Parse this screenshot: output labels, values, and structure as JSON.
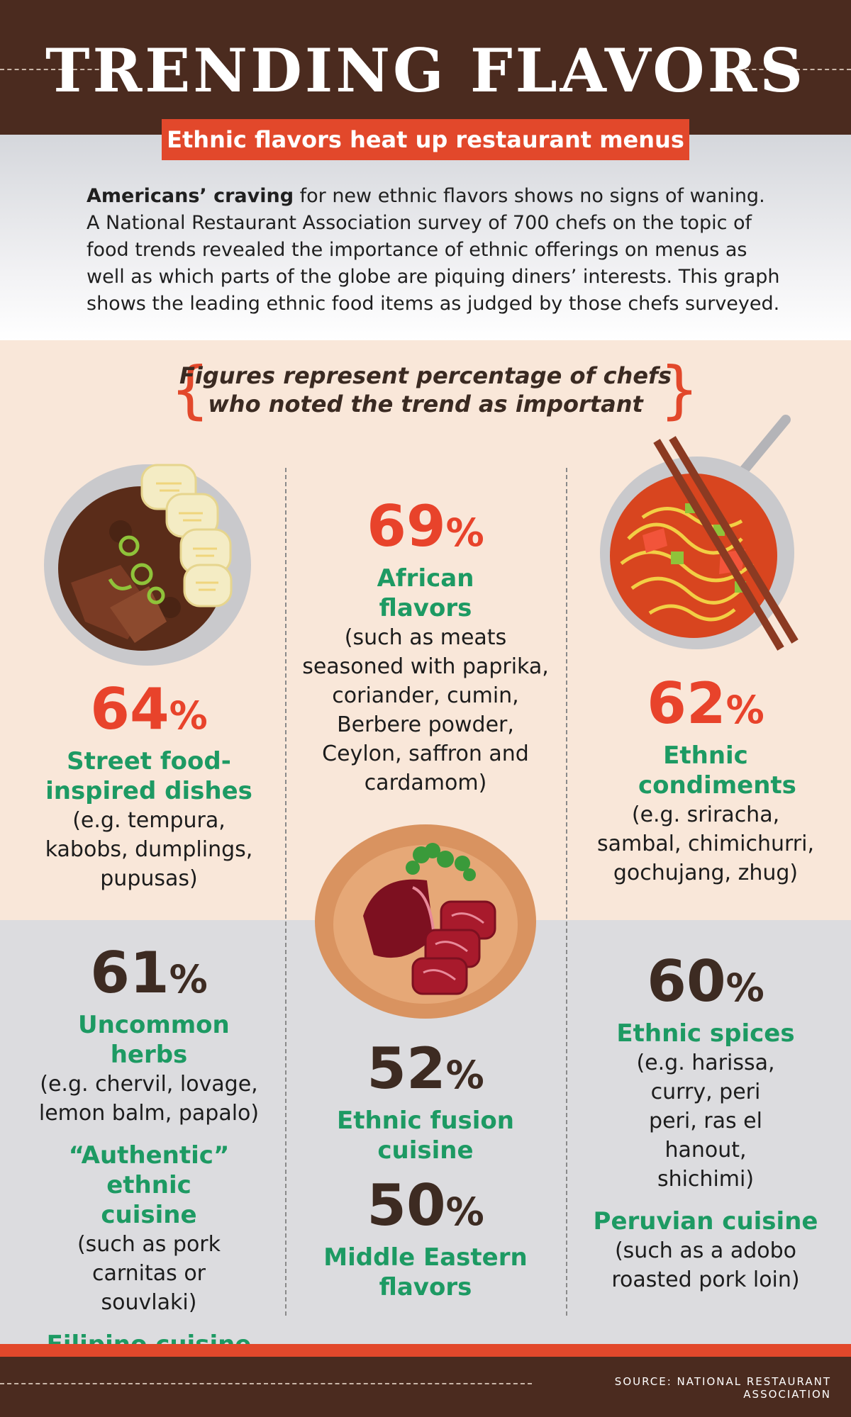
{
  "header": {
    "title": "TRENDING FLAVORS",
    "subtitle": "Ethnic flavors heat up restaurant menus"
  },
  "intro": {
    "lead": "Americans’ craving",
    "body": " for new ethnic flavors shows no signs of waning. A National Restaurant Association survey of 700 chefs on the topic of food trends revealed the importance of ethnic offerings on menus as well as which parts of the globe are piquing diners’ interests. This graph shows the leading ethnic food items as judged by those chefs surveyed."
  },
  "note": "Figures represent percentage of chefs who noted the trend as important",
  "stats": {
    "street": {
      "pct": "64",
      "label": "Street food-inspired dishes",
      "desc": "(e.g. tempura, kabobs, dumplings, pupusas)"
    },
    "african": {
      "pct": "69",
      "label": "African flavors",
      "desc": "(such as meats seasoned with paprika, coriander, cumin, Berbere powder, Ceylon, saffron and cardamom)"
    },
    "condiments": {
      "pct": "62",
      "label": "Ethnic condiments",
      "desc": "(e.g. sriracha, sambal, chimichurri, gochujang, zhug)"
    },
    "herbs": {
      "pct": "61",
      "label": "Uncommon herbs",
      "desc": "(e.g. chervil, lovage, lemon balm, papalo)"
    },
    "authentic": {
      "label": "“Authentic” ethnic cuisine",
      "desc": "(such as pork carnitas or souvlaki)"
    },
    "filipino": {
      "label": "Filipino cuisine"
    },
    "fusion": {
      "pct": "52",
      "label": "Ethnic fusion cuisine"
    },
    "middle_eastern": {
      "pct": "50",
      "label": "Middle Eastern flavors"
    },
    "spices": {
      "pct": "60",
      "label": "Ethnic spices",
      "desc": "(e.g. harissa, curry, peri peri, ras el hanout, shichimi)"
    },
    "peruvian": {
      "label": "Peruvian cuisine",
      "desc": "(such as a adobo roasted pork loin)"
    }
  },
  "pct_symbol": "%",
  "footer": {
    "source": "SOURCE: NATIONAL RESTAURANT ASSOCIATION"
  },
  "colors": {
    "brown": "#4b2b1f",
    "red": "#e2482b",
    "green": "#1d9a63",
    "cream": "#f9e7d9",
    "gray": "#dcdcdf"
  },
  "icons": [
    "stew-bowl-icon",
    "noodle-bowl-icon",
    "meat-plate-icon"
  ]
}
